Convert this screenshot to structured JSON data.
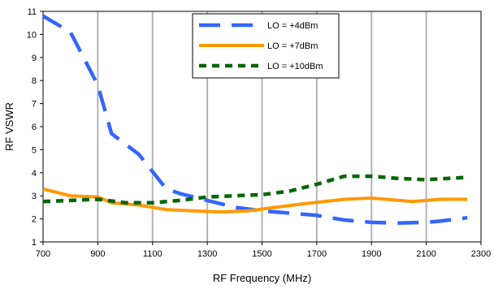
{
  "chart_data": {
    "type": "line",
    "xlabel": "RF Frequency (MHz)",
    "ylabel": "RF VSWR",
    "xlim": [
      700,
      2300
    ],
    "ylim": [
      1,
      11
    ],
    "x_ticks": [
      "700",
      "900",
      "1100",
      "1300",
      "1500",
      "1700",
      "1900",
      "2100",
      "2300"
    ],
    "y_ticks": [
      "1",
      "2",
      "3",
      "4",
      "5",
      "6",
      "7",
      "8",
      "9",
      "10",
      "11"
    ],
    "grid": "vertical",
    "legend_position": "top-center",
    "series": [
      {
        "name": "LO = +4dBm",
        "color": "#3366ff",
        "style": "long-dash",
        "points": [
          [
            700,
            10.8
          ],
          [
            800,
            10.1
          ],
          [
            900,
            7.8
          ],
          [
            950,
            5.7
          ],
          [
            1050,
            4.8
          ],
          [
            1150,
            3.3
          ],
          [
            1200,
            3.1
          ],
          [
            1300,
            2.8
          ],
          [
            1400,
            2.5
          ],
          [
            1500,
            2.35
          ],
          [
            1600,
            2.25
          ],
          [
            1700,
            2.15
          ],
          [
            1800,
            1.95
          ],
          [
            1900,
            1.85
          ],
          [
            2000,
            1.82
          ],
          [
            2100,
            1.85
          ],
          [
            2150,
            1.9
          ],
          [
            2250,
            2.05
          ]
        ]
      },
      {
        "name": "LO = +7dBm",
        "color": "#ff9900",
        "style": "solid",
        "points": [
          [
            700,
            3.3
          ],
          [
            800,
            3.0
          ],
          [
            900,
            2.95
          ],
          [
            950,
            2.7
          ],
          [
            1050,
            2.6
          ],
          [
            1150,
            2.4
          ],
          [
            1250,
            2.35
          ],
          [
            1350,
            2.3
          ],
          [
            1450,
            2.35
          ],
          [
            1550,
            2.5
          ],
          [
            1650,
            2.65
          ],
          [
            1800,
            2.85
          ],
          [
            1900,
            2.9
          ],
          [
            2050,
            2.75
          ],
          [
            2150,
            2.85
          ],
          [
            2250,
            2.85
          ]
        ]
      },
      {
        "name": "LO = +10dBm",
        "color": "#006600",
        "style": "short-dash",
        "points": [
          [
            700,
            2.75
          ],
          [
            800,
            2.8
          ],
          [
            900,
            2.85
          ],
          [
            1000,
            2.7
          ],
          [
            1100,
            2.7
          ],
          [
            1200,
            2.8
          ],
          [
            1300,
            2.95
          ],
          [
            1400,
            3.0
          ],
          [
            1500,
            3.05
          ],
          [
            1600,
            3.2
          ],
          [
            1700,
            3.5
          ],
          [
            1800,
            3.85
          ],
          [
            1900,
            3.85
          ],
          [
            2000,
            3.75
          ],
          [
            2100,
            3.7
          ],
          [
            2250,
            3.8
          ]
        ]
      }
    ]
  }
}
